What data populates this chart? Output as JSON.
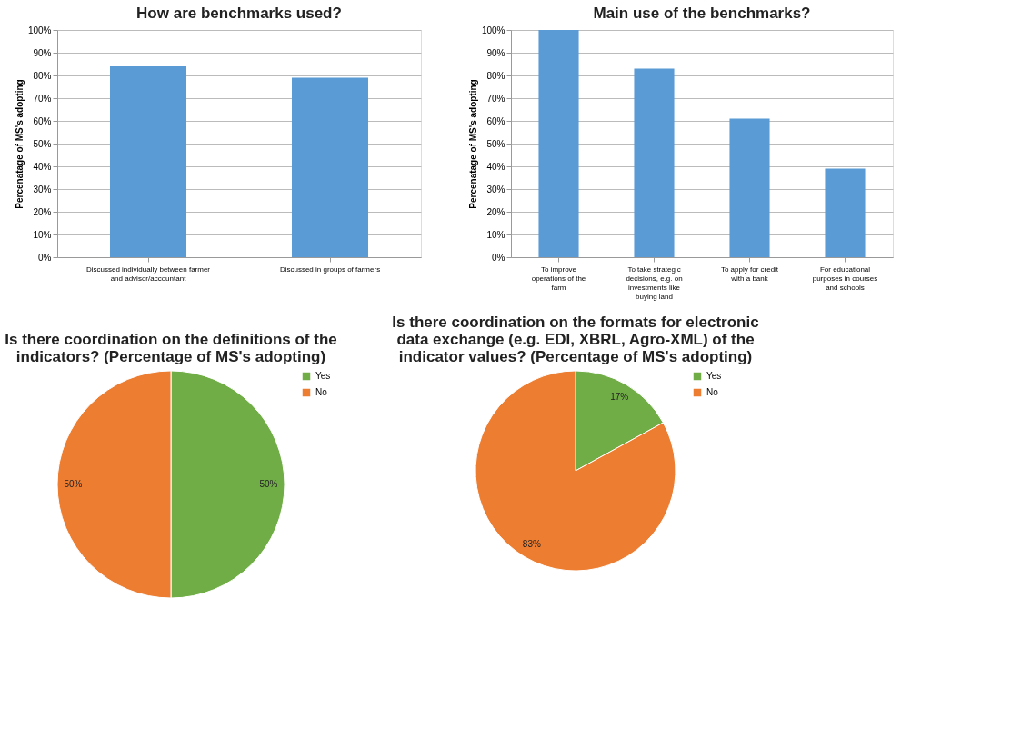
{
  "chart_data": [
    {
      "type": "bar",
      "title": "How are benchmarks used?",
      "ylabel": "Percenatage of MS's adopting",
      "categories": [
        "Discussed individually between farmer and advisor/accountant",
        "Discussed in groups of farmers"
      ],
      "values": [
        84,
        79
      ],
      "color": "#5b9bd5",
      "ylim": [
        0,
        100
      ],
      "yticks": [
        {
          "value": 0,
          "label": "0%"
        },
        {
          "value": 10,
          "label": "10%"
        },
        {
          "value": 20,
          "label": "20%"
        },
        {
          "value": 30,
          "label": "30%"
        },
        {
          "value": 40,
          "label": "40%"
        },
        {
          "value": 50,
          "label": "50%"
        },
        {
          "value": 60,
          "label": "60%"
        },
        {
          "value": 70,
          "label": "70%"
        },
        {
          "value": 80,
          "label": "80%"
        },
        {
          "value": 90,
          "label": "90%"
        },
        {
          "value": 100,
          "label": "100%"
        }
      ],
      "grid": "y"
    },
    {
      "type": "bar",
      "title": "Main use of the benchmarks?",
      "ylabel": "Percenatage of MS's adopting",
      "categories": [
        "To improve operations of the farm",
        "To take strategic decisions, e.g. on investments like buying land",
        "To apply for credit with a bank",
        "For educational purposes in courses and schools"
      ],
      "values": [
        100,
        83,
        61,
        39
      ],
      "color": "#5b9bd5",
      "ylim": [
        0,
        100
      ],
      "yticks": [
        {
          "value": 0,
          "label": "0%"
        },
        {
          "value": 10,
          "label": "10%"
        },
        {
          "value": 20,
          "label": "20%"
        },
        {
          "value": 30,
          "label": "30%"
        },
        {
          "value": 40,
          "label": "40%"
        },
        {
          "value": 50,
          "label": "50%"
        },
        {
          "value": 60,
          "label": "60%"
        },
        {
          "value": 70,
          "label": "70%"
        },
        {
          "value": 80,
          "label": "80%"
        },
        {
          "value": 90,
          "label": "90%"
        },
        {
          "value": 100,
          "label": "100%"
        }
      ],
      "grid": "y"
    },
    {
      "type": "pie",
      "title": "Is there coordination on the definitions of the indicators? (Percentage of MS's adopting)",
      "categories": [
        "Yes",
        "No"
      ],
      "values": [
        50,
        50
      ],
      "colors": [
        "#70ad47",
        "#ed7d31"
      ],
      "value_labels": [
        "50%",
        "50%"
      ],
      "legend": "right"
    },
    {
      "type": "pie",
      "title": "Is there coordination on the formats for electronic data exchange (e.g. EDI, XBRL, Agro-XML) of the indicator values? (Percentage of MS's adopting)",
      "categories": [
        "Yes",
        "No"
      ],
      "values": [
        17,
        83
      ],
      "colors": [
        "#70ad47",
        "#ed7d31"
      ],
      "value_labels": [
        "17%",
        "83%"
      ],
      "legend": "right"
    }
  ]
}
